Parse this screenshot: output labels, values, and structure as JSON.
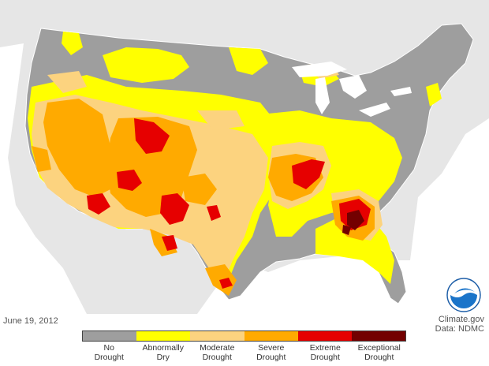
{
  "map": {
    "date": "June 19, 2012",
    "credit_line1": "Climate.gov",
    "credit_line2": "Data: NDMC",
    "logo_text": "NOAA"
  },
  "legend": {
    "items": [
      {
        "label": "No Drought",
        "color": "#9e9e9e"
      },
      {
        "label": "Abnormally Dry",
        "color": "#ffff00"
      },
      {
        "label": "Moderate Drought",
        "color": "#fcd37f"
      },
      {
        "label": "Severe Drought",
        "color": "#ffaa00"
      },
      {
        "label": "Extreme Drought",
        "color": "#e60000"
      },
      {
        "label": "Exceptional Drought",
        "color": "#730000"
      }
    ]
  },
  "colors": {
    "land_background": "#e6e6e6",
    "water": "#ffffff",
    "no_drought": "#9e9e9e",
    "abnormally_dry": "#ffff00",
    "moderate": "#fcd37f",
    "severe": "#ffaa00",
    "extreme": "#e60000",
    "exceptional": "#730000"
  }
}
